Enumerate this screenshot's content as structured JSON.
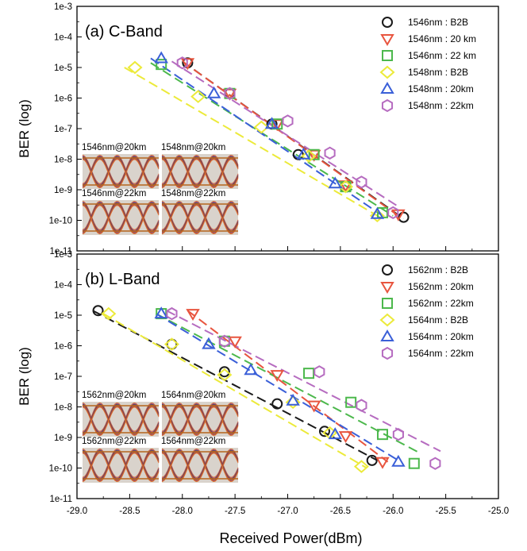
{
  "figure": {
    "xlabel": "Received Power(dBm)",
    "x_ticks": [
      "-29.0",
      "-28.5",
      "-28.0",
      "-27.5",
      "-27.0",
      "-26.5",
      "-26.0",
      "-25.5",
      "-25.0"
    ],
    "y_ticks": [
      "1e-3",
      "1e-4",
      "1e-5",
      "1e-6",
      "1e-7",
      "1e-8",
      "1e-9",
      "1e-10",
      "1e-11"
    ]
  },
  "chart_data": [
    {
      "type": "scatter",
      "title": "(a) C-Band",
      "xlabel": "Received Power(dBm)",
      "ylabel": "BER (log)",
      "xlim": [
        -29.0,
        -25.0
      ],
      "ylim": [
        -11,
        -3
      ],
      "y_scale": "log10",
      "legend_position": "top-right",
      "eye_diagrams": [
        "1546nm@20km",
        "1548nm@20km",
        "1546nm@22km",
        "1548nm@22km"
      ],
      "series": [
        {
          "name": "1546nm : B2B",
          "marker": "circle",
          "color": "#1a1a1a",
          "x": [
            -27.95,
            -27.55,
            -27.15,
            -26.9,
            -26.45,
            -25.9
          ],
          "y": [
            -4.85,
            -5.85,
            -6.85,
            -7.85,
            -8.9,
            -9.9
          ]
        },
        {
          "name": "1546nm : 20 km",
          "marker": "triangle-down",
          "color": "#e8553f",
          "x": [
            -27.95,
            -27.55,
            -27.1,
            -26.75,
            -26.45,
            -25.95
          ],
          "y": [
            -4.85,
            -5.85,
            -6.85,
            -7.85,
            -8.85,
            -9.8
          ]
        },
        {
          "name": "1546nm : 22 km",
          "marker": "square",
          "color": "#4cb84c",
          "x": [
            -28.2,
            -27.55,
            -27.1,
            -26.75,
            -26.45,
            -26.1
          ],
          "y": [
            -4.9,
            -5.85,
            -6.85,
            -7.85,
            -8.9,
            -9.75
          ]
        },
        {
          "name": "1548nm : B2B",
          "marker": "diamond",
          "color": "#ecea3a",
          "x": [
            -28.45,
            -27.85,
            -27.25,
            -26.8,
            -26.45,
            -26.15
          ],
          "y": [
            -5.0,
            -5.95,
            -6.95,
            -7.9,
            -8.9,
            -9.85
          ]
        },
        {
          "name": "1548nm : 20km",
          "marker": "triangle-up",
          "color": "#3a5fd8",
          "x": [
            -28.2,
            -27.7,
            -27.15,
            -26.85,
            -26.55,
            -26.15
          ],
          "y": [
            -4.7,
            -5.85,
            -6.85,
            -7.85,
            -8.8,
            -9.8
          ]
        },
        {
          "name": "1548nm : 22km",
          "marker": "hexagon",
          "color": "#b66cc0",
          "x": [
            -28.0,
            -27.55,
            -27.0,
            -26.6,
            -26.3,
            -26.0
          ],
          "y": [
            -4.85,
            -5.85,
            -6.75,
            -7.8,
            -8.75,
            -9.75
          ]
        }
      ],
      "fit_lines": [
        {
          "color": "#1a1a1a",
          "x": [
            -28.0,
            -25.9
          ],
          "y": [
            -4.8,
            -9.95
          ]
        },
        {
          "color": "#e8553f",
          "x": [
            -28.0,
            -25.95
          ],
          "y": [
            -4.8,
            -9.85
          ]
        },
        {
          "color": "#4cb84c",
          "x": [
            -28.3,
            -26.0
          ],
          "y": [
            -4.85,
            -9.85
          ]
        },
        {
          "color": "#ecea3a",
          "x": [
            -28.55,
            -26.1
          ],
          "y": [
            -5.0,
            -9.95
          ]
        },
        {
          "color": "#3a5fd8",
          "x": [
            -28.3,
            -26.1
          ],
          "y": [
            -4.7,
            -9.85
          ]
        },
        {
          "color": "#b66cc0",
          "x": [
            -28.1,
            -25.95
          ],
          "y": [
            -4.8,
            -9.55
          ]
        }
      ]
    },
    {
      "type": "scatter",
      "title": "(b) L-Band",
      "xlabel": "Received Power(dBm)",
      "ylabel": "BER (log)",
      "xlim": [
        -29.0,
        -25.0
      ],
      "ylim": [
        -11,
        -3
      ],
      "y_scale": "log10",
      "legend_position": "top-right",
      "eye_diagrams": [
        "1562nm@20km",
        "1564nm@20km",
        "1562nm@22km",
        "1564nm@22km"
      ],
      "series": [
        {
          "name": "1562nm : B2B",
          "marker": "circle",
          "color": "#1a1a1a",
          "x": [
            -28.8,
            -28.1,
            -27.6,
            -27.1,
            -26.65,
            -26.2
          ],
          "y": [
            -4.85,
            -5.95,
            -6.85,
            -7.9,
            -8.8,
            -9.75
          ]
        },
        {
          "name": "1562nm : 20km",
          "marker": "triangle-down",
          "color": "#e8553f",
          "x": [
            -27.9,
            -27.5,
            -27.1,
            -26.75,
            -26.45,
            -26.1
          ],
          "y": [
            -4.95,
            -5.85,
            -6.95,
            -7.95,
            -8.95,
            -9.8
          ]
        },
        {
          "name": "1562nm : 22km",
          "marker": "square",
          "color": "#4cb84c",
          "x": [
            -28.2,
            -27.6,
            -26.8,
            -26.4,
            -26.1,
            -25.8
          ],
          "y": [
            -4.95,
            -5.85,
            -6.9,
            -7.85,
            -8.9,
            -9.85
          ]
        },
        {
          "name": "1564nm : B2B",
          "marker": "diamond",
          "color": "#ecea3a",
          "x": [
            -28.7,
            -28.1,
            -27.6,
            -26.95,
            -26.6,
            -26.3
          ],
          "y": [
            -4.95,
            -5.95,
            -6.95,
            -7.85,
            -8.85,
            -9.95
          ]
        },
        {
          "name": "1564nm : 20km",
          "marker": "triangle-up",
          "color": "#3a5fd8",
          "x": [
            -28.2,
            -27.75,
            -27.35,
            -26.95,
            -26.55,
            -25.95
          ],
          "y": [
            -4.95,
            -5.95,
            -6.8,
            -7.8,
            -8.9,
            -9.8
          ]
        },
        {
          "name": "1564nm : 22km",
          "marker": "hexagon",
          "color": "#b66cc0",
          "x": [
            -28.1,
            -27.6,
            -26.7,
            -26.3,
            -25.95,
            -25.6
          ],
          "y": [
            -4.95,
            -5.85,
            -6.85,
            -7.95,
            -8.9,
            -9.85
          ]
        }
      ],
      "fit_lines": [
        {
          "color": "#1a1a1a",
          "x": [
            -28.85,
            -26.15
          ],
          "y": [
            -4.85,
            -9.75
          ]
        },
        {
          "color": "#e8553f",
          "x": [
            -27.95,
            -26.05
          ],
          "y": [
            -4.85,
            -9.8
          ]
        },
        {
          "color": "#4cb84c",
          "x": [
            -28.25,
            -25.75
          ],
          "y": [
            -4.95,
            -9.5
          ]
        },
        {
          "color": "#ecea3a",
          "x": [
            -28.75,
            -26.25
          ],
          "y": [
            -4.95,
            -10.0
          ]
        },
        {
          "color": "#3a5fd8",
          "x": [
            -28.25,
            -25.95
          ],
          "y": [
            -4.95,
            -9.75
          ]
        },
        {
          "color": "#b66cc0",
          "x": [
            -28.15,
            -25.55
          ],
          "y": [
            -4.85,
            -9.45
          ]
        }
      ]
    }
  ]
}
